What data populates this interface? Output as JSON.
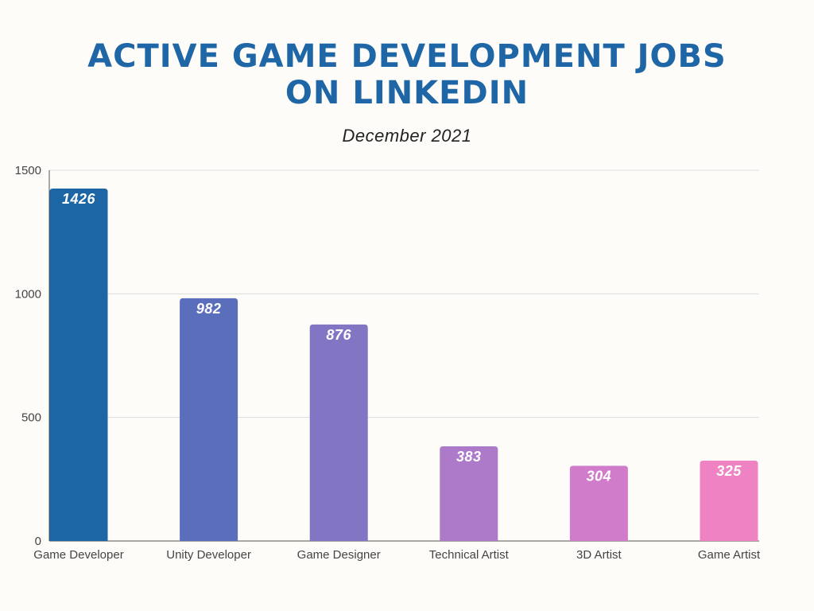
{
  "chart_data": {
    "type": "bar",
    "title_line1": "ACTIVE GAME DEVELOPMENT JOBS",
    "title_line2": "ON LINKEDIN",
    "subtitle": "December 2021",
    "categories": [
      "Game Developer",
      "Unity Developer",
      "Game Designer",
      "Technical Artist",
      "3D Artist",
      "Game Artist"
    ],
    "values": [
      1426,
      982,
      876,
      383,
      304,
      325
    ],
    "colors": [
      "#1c66a6",
      "#5a6ebb",
      "#8275c3",
      "#ad79c9",
      "#d17ccb",
      "#ef82c2"
    ],
    "yticks": [
      0,
      500,
      1000,
      1500
    ],
    "ylim": [
      0,
      1500
    ],
    "xlabel": "",
    "ylabel": "",
    "grid": true
  }
}
